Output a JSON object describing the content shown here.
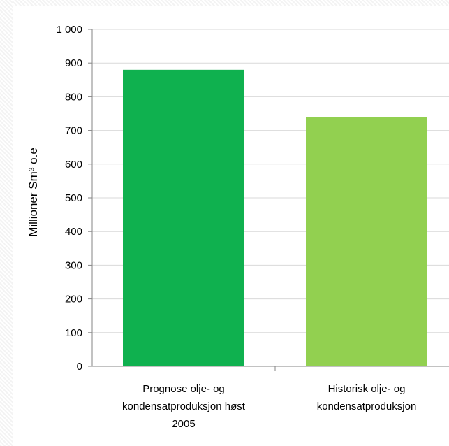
{
  "chart_data": {
    "type": "bar",
    "categories": [
      [
        "Prognose olje- og",
        "kondensatproduksjon høst",
        "2005"
      ],
      [
        "Historisk olje- og",
        "kondensatproduksjon"
      ]
    ],
    "values": [
      880,
      740
    ],
    "colors": [
      "#0fb14f",
      "#92d050"
    ],
    "ylabel": "Millioner Sm³ o.e",
    "ylim": [
      0,
      1000
    ],
    "yticks": [
      0,
      100,
      200,
      300,
      400,
      500,
      600,
      700,
      800,
      900,
      1000
    ],
    "ytick_labels": [
      "0",
      "100",
      "200",
      "300",
      "400",
      "500",
      "600",
      "700",
      "800",
      "900",
      "1 000"
    ],
    "grid": true,
    "legend": "none"
  }
}
